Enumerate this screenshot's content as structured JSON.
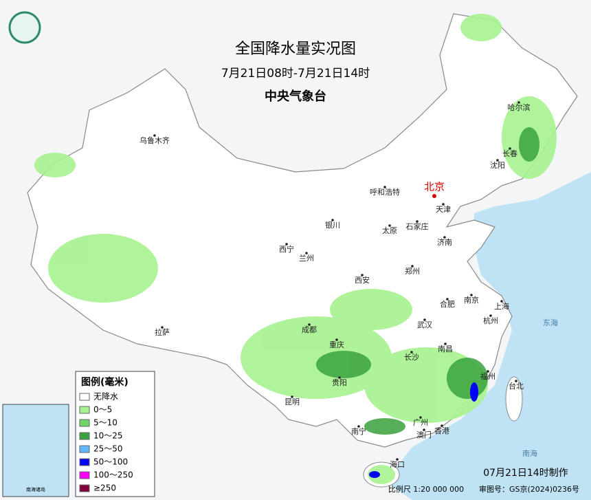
{
  "header": {
    "title": "全国降水量实况图",
    "period": "7月21日08时-7月21日14时",
    "agency": "中央气象台"
  },
  "capital": "北京",
  "cities": [
    "乌鲁木齐",
    "呼和浩特",
    "天津",
    "哈尔滨",
    "长春",
    "沈阳",
    "银川",
    "太原",
    "石家庄",
    "济南",
    "西宁",
    "兰州",
    "郑州",
    "西安",
    "合肥",
    "南京",
    "上海",
    "杭州",
    "武汉",
    "成都",
    "拉萨",
    "重庆",
    "南昌",
    "长沙",
    "福州",
    "台北",
    "贵阳",
    "昆明",
    "广州",
    "香港",
    "澳门",
    "南宁",
    "海口"
  ],
  "sea_labels": [
    "东海",
    "南海"
  ],
  "legend": {
    "title": "图例(毫米)",
    "items": [
      {
        "label": "无降水",
        "color": "#ffffff"
      },
      {
        "label": "0～5",
        "color": "#a6f28f"
      },
      {
        "label": "5～10",
        "color": "#6fd36a"
      },
      {
        "label": "10～25",
        "color": "#3aa23e"
      },
      {
        "label": "25～50",
        "color": "#62b8ff"
      },
      {
        "label": "50～100",
        "color": "#0000fe"
      },
      {
        "label": "100～250",
        "color": "#fa00fa"
      },
      {
        "label": "≥250",
        "color": "#800040"
      }
    ]
  },
  "inset": {
    "title": "南海诸岛"
  },
  "footer": {
    "made": "07月21日14时制作",
    "scale": "比例尺 1:20 000 000",
    "approval": "审图号：GS京(2024)0236号"
  }
}
